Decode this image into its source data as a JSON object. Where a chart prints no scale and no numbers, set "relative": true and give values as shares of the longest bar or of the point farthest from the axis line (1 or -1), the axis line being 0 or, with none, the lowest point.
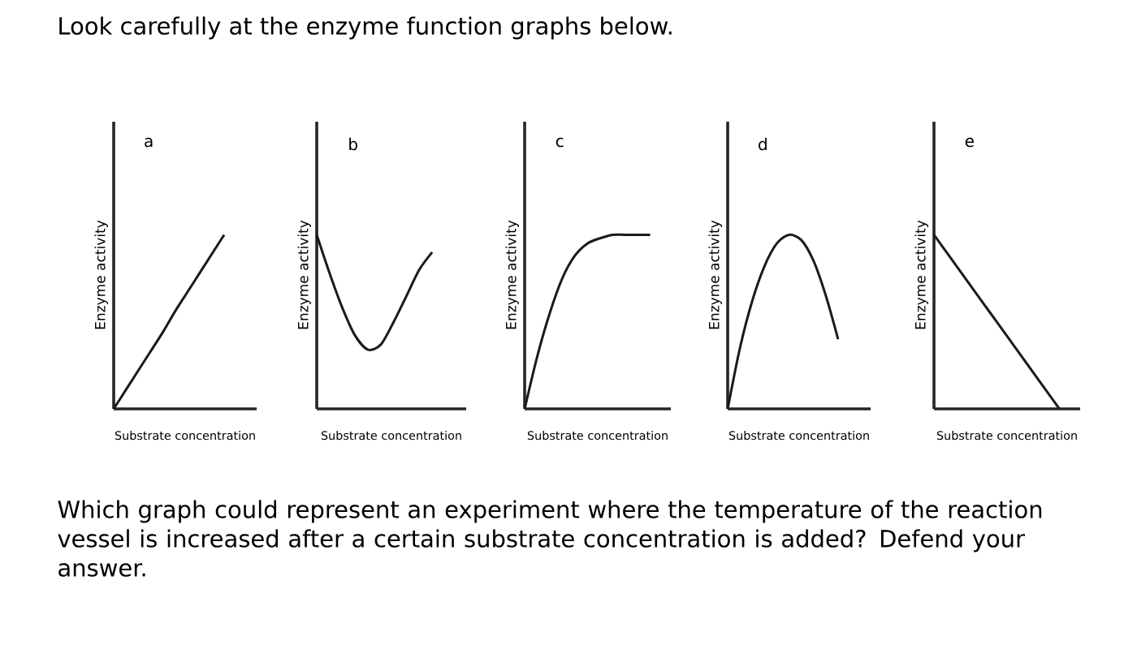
{
  "chart_data": [
    {
      "type": "line",
      "relative": true,
      "title": "a",
      "xlabel": "Substrate concentration",
      "ylabel": "Enzyme activity",
      "color": "#1a1a1a",
      "categories": [
        null,
        null,
        null,
        null,
        null,
        null,
        null,
        null,
        null,
        null,
        null
      ],
      "values": [
        0,
        0.11,
        0.22,
        0.33,
        0.44,
        0.56,
        0.67,
        0.78,
        0.89,
        1,
        null
      ],
      "annotations": [
        "Look carefully at the enzyme function graphs below.",
        "Which graph could represent an experiment where the temperature of the reaction vessel is increased after a certain substrate concentration is added? Defend your answer."
      ]
    },
    {
      "type": "line",
      "relative": true,
      "title": "b",
      "xlabel": "Substrate concentration",
      "ylabel": "Enzyme activity",
      "color": "#1a1a1a",
      "categories": [
        null,
        null,
        null,
        null,
        null,
        null,
        null,
        null,
        null,
        null,
        null
      ],
      "values": [
        1,
        0.78,
        0.58,
        0.42,
        0.34,
        0.37,
        0.5,
        0.65,
        0.8,
        0.9,
        null
      ]
    },
    {
      "type": "line",
      "relative": true,
      "title": "c",
      "xlabel": "Substrate concentration",
      "ylabel": "Enzyme activity",
      "color": "#1a1a1a",
      "categories": [
        null,
        null,
        null,
        null,
        null,
        null,
        null,
        null,
        null,
        null,
        null
      ],
      "values": [
        0,
        0.3,
        0.55,
        0.75,
        0.88,
        0.95,
        0.98,
        1,
        1,
        1,
        1
      ]
    },
    {
      "type": "line",
      "relative": true,
      "title": "d",
      "xlabel": "Substrate concentration",
      "ylabel": "Enzyme activity",
      "color": "#1a1a1a",
      "categories": [
        null,
        null,
        null,
        null,
        null,
        null,
        null,
        null,
        null,
        null,
        null
      ],
      "values": [
        0,
        0.35,
        0.62,
        0.82,
        0.95,
        1,
        0.97,
        0.85,
        0.65,
        0.4,
        null
      ]
    },
    {
      "type": "line",
      "relative": true,
      "title": "e",
      "xlabel": "Substrate concentration",
      "ylabel": "Enzyme activity",
      "color": "#1a1a1a",
      "categories": [
        null,
        null,
        null,
        null,
        null,
        null,
        null,
        null,
        null,
        null,
        null
      ],
      "values": [
        1,
        0.9,
        0.8,
        0.7,
        0.6,
        0.5,
        0.4,
        0.3,
        0.2,
        0.1,
        0
      ]
    }
  ]
}
